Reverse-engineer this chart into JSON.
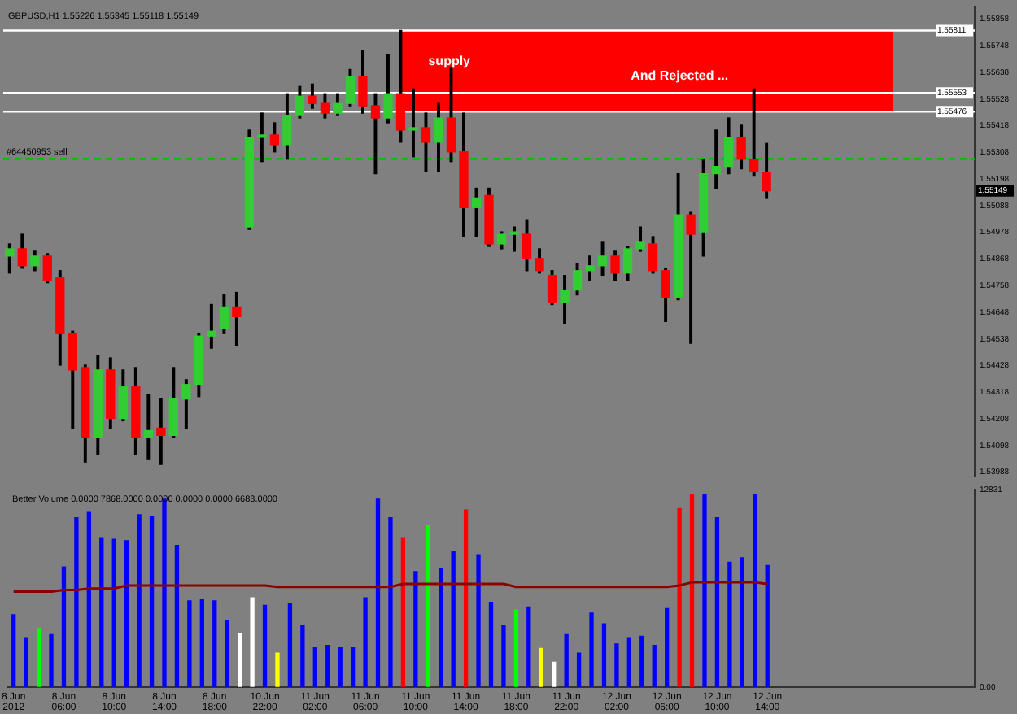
{
  "chart_data": [
    {
      "type": "candlestick",
      "title": "GBPUSD,H1 1.55226 1.55345 1.55118 1.55149",
      "categories": [
        null,
        null,
        null,
        null,
        null,
        null,
        null,
        null,
        null,
        null,
        null,
        null,
        null,
        null,
        null,
        null,
        null,
        null,
        null,
        null,
        null,
        null,
        null,
        null,
        null,
        null,
        null,
        null,
        null,
        null,
        null,
        null,
        null,
        null,
        null,
        null,
        null,
        null,
        null,
        null,
        null,
        null,
        null,
        null,
        null,
        null,
        null,
        null,
        null,
        null,
        null,
        null,
        null,
        null,
        null,
        null,
        null,
        null,
        null,
        null,
        null,
        null,
        null,
        null,
        null,
        null,
        null,
        null,
        null,
        null,
        null,
        null,
        null,
        null,
        null,
        null,
        null
      ],
      "ohlc": [
        [
          1.5488,
          1.5493,
          1.5481,
          1.5491
        ],
        [
          1.5491,
          1.5497,
          1.5483,
          1.5484
        ],
        [
          1.5484,
          1.549,
          1.5482,
          1.5488
        ],
        [
          1.5488,
          1.5489,
          1.5477,
          1.5478
        ],
        [
          1.5479,
          1.5482,
          1.5443,
          1.5456
        ],
        [
          1.5456,
          1.5457,
          1.5417,
          1.5441
        ],
        [
          1.5442,
          1.5443,
          1.5403,
          1.5413
        ],
        [
          1.5413,
          1.5447,
          1.5406,
          1.5441
        ],
        [
          1.5441,
          1.5446,
          1.5417,
          1.5421
        ],
        [
          1.5421,
          1.5441,
          1.542,
          1.5434
        ],
        [
          1.5434,
          1.5442,
          1.5406,
          1.5413
        ],
        [
          1.5413,
          1.5431,
          1.5404,
          1.5416
        ],
        [
          1.5417,
          1.5429,
          1.5402,
          1.5414
        ],
        [
          1.5414,
          1.5442,
          1.5413,
          1.5429
        ],
        [
          1.5429,
          1.5437,
          1.5417,
          1.5435
        ],
        [
          1.5435,
          1.5456,
          1.543,
          1.5455
        ],
        [
          1.5455,
          1.5468,
          1.545,
          1.5457
        ],
        [
          1.5458,
          1.5472,
          1.5456,
          1.5467
        ],
        [
          1.5467,
          1.5473,
          1.5451,
          1.5463
        ],
        [
          1.55,
          1.554,
          1.5499,
          1.5537
        ],
        [
          1.5537,
          1.5547,
          1.5527,
          1.5538
        ],
        [
          1.5538,
          1.5543,
          1.5531,
          1.5534
        ],
        [
          1.5534,
          1.5555,
          1.5528,
          1.5546
        ],
        [
          1.5546,
          1.5558,
          1.5545,
          1.5554
        ],
        [
          1.5554,
          1.5559,
          1.5549,
          1.5551
        ],
        [
          1.5551,
          1.5555,
          1.5545,
          1.5547
        ],
        [
          1.5547,
          1.5555,
          1.5546,
          1.5551
        ],
        [
          1.5551,
          1.5565,
          1.555,
          1.5562
        ],
        [
          1.5562,
          1.5573,
          1.5547,
          1.555
        ],
        [
          1.555,
          1.5555,
          1.5522,
          1.5545
        ],
        [
          1.5545,
          1.5571,
          1.5543,
          1.5555
        ],
        [
          1.5555,
          1.55811,
          1.5535,
          1.554
        ],
        [
          1.554,
          1.5557,
          1.5529,
          1.5541
        ],
        [
          1.5541,
          1.5547,
          1.5523,
          1.5535
        ],
        [
          1.5535,
          1.5551,
          1.5523,
          1.5545
        ],
        [
          1.5545,
          1.5566,
          1.5527,
          1.5531
        ],
        [
          1.5531,
          1.5547,
          1.5496,
          1.5508
        ],
        [
          1.5508,
          1.5516,
          1.5496,
          1.5512
        ],
        [
          1.5513,
          1.5516,
          1.5492,
          1.5493
        ],
        [
          1.5493,
          1.5498,
          1.5491,
          1.5497
        ],
        [
          1.5497,
          1.55,
          1.549,
          1.5498
        ],
        [
          1.5497,
          1.5503,
          1.5482,
          1.5487
        ],
        [
          1.5487,
          1.5491,
          1.5481,
          1.5482
        ],
        [
          1.548,
          1.5482,
          1.5468,
          1.5469
        ],
        [
          1.5469,
          1.548,
          1.546,
          1.5474
        ],
        [
          1.5474,
          1.5485,
          1.5472,
          1.5482
        ],
        [
          1.5482,
          1.5488,
          1.5478,
          1.5484
        ],
        [
          1.5484,
          1.5494,
          1.548,
          1.5488
        ],
        [
          1.5488,
          1.549,
          1.5478,
          1.5481
        ],
        [
          1.5481,
          1.5492,
          1.5478,
          1.5491
        ],
        [
          1.5491,
          1.55,
          1.549,
          1.5494
        ],
        [
          1.5493,
          1.5496,
          1.5481,
          1.5482
        ],
        [
          1.5482,
          1.5483,
          1.5461,
          1.5471
        ],
        [
          1.5471,
          1.5522,
          1.547,
          1.5505
        ],
        [
          1.5505,
          1.5506,
          1.5452,
          1.5497
        ],
        [
          1.5498,
          1.5528,
          1.5488,
          1.5522
        ],
        [
          1.5522,
          1.554,
          1.5516,
          1.5525
        ],
        [
          1.5525,
          1.5545,
          1.5522,
          1.5537
        ],
        [
          1.5537,
          1.5542,
          1.5524,
          1.5528
        ],
        [
          1.5528,
          1.5557,
          1.5521,
          1.5523
        ],
        [
          1.55226,
          1.55345,
          1.55118,
          1.55149
        ],
        null,
        null,
        null,
        null,
        null,
        null,
        null,
        null,
        null,
        null,
        null,
        null,
        null,
        null,
        null,
        null
      ],
      "colors": [
        "#32cd32",
        "#ff0000",
        "#32cd32",
        "#ff0000",
        "#ff0000",
        "#ff0000",
        "#ff0000",
        "#32cd32",
        "#ff0000",
        "#32cd32",
        "#ff0000",
        "#32cd32",
        "#ff0000",
        "#32cd32",
        "#32cd32",
        "#32cd32",
        "#32cd32",
        "#32cd32",
        "#ff0000",
        "#32cd32",
        "#32cd32",
        "#ff0000",
        "#32cd32",
        "#32cd32",
        "#ff0000",
        "#ff0000",
        "#32cd32",
        "#32cd32",
        "#ff0000",
        "#ff0000",
        "#32cd32",
        "#ff0000",
        "#32cd32",
        "#ff0000",
        "#32cd32",
        "#ff0000",
        "#ff0000",
        "#32cd32",
        "#ff0000",
        "#32cd32",
        "#32cd32",
        "#ff0000",
        "#ff0000",
        "#ff0000",
        "#32cd32",
        "#32cd32",
        "#32cd32",
        "#32cd32",
        "#ff0000",
        "#32cd32",
        "#32cd32",
        "#ff0000",
        "#ff0000",
        "#32cd32",
        "#ff0000",
        "#32cd32",
        "#32cd32",
        "#32cd32",
        "#ff0000",
        "#ff0000",
        "#ff0000",
        null,
        null,
        null,
        null,
        null,
        null,
        null,
        null,
        null,
        null,
        null,
        null,
        null,
        null,
        null,
        null
      ],
      "ylim": [
        1.5397,
        1.5591
      ],
      "yticks": [
        1.55858,
        1.55748,
        1.55638,
        1.55528,
        1.55418,
        1.55308,
        1.55198,
        1.55088,
        1.54978,
        1.54868,
        1.54758,
        1.54648,
        1.54538,
        1.54428,
        1.54318,
        1.54208,
        1.54098,
        1.53988
      ],
      "bands": [
        {
          "axis": "y",
          "from": 1.55476,
          "to": 1.55811,
          "label": "supply",
          "color": "#ff0000"
        }
      ],
      "ref_lines": [
        {
          "axis": "y",
          "value": 1.55811,
          "label": "1.55811",
          "color": "#ffffff"
        },
        {
          "axis": "y",
          "value": 1.55553,
          "label": "1.55553",
          "color": "#ffffff"
        },
        {
          "axis": "y",
          "value": 1.55476,
          "label": "1.55476",
          "color": "#ffffff"
        },
        {
          "axis": "y",
          "value": 1.55281,
          "label": "#64450953 sell",
          "color": "#00c000",
          "line_style": "dashed"
        }
      ],
      "annotations": [
        "And Rejected ...",
        {
          "text": "1.55149",
          "y": 1.55149
        }
      ],
      "tick_labels": "y"
    },
    {
      "type": "bar",
      "title": "Better Volume 0.0000 7868.0000 0.0000 0.0000 0.0000 6683.0000",
      "categories": [
        "8 Jun 2012",
        null,
        null,
        null,
        "8 Jun 06:00",
        null,
        null,
        null,
        "8 Jun 10:00",
        null,
        null,
        null,
        "8 Jun 14:00",
        null,
        null,
        null,
        "8 Jun 18:00",
        null,
        null,
        null,
        "10 Jun 22:00",
        null,
        null,
        null,
        "11 Jun 02:00",
        null,
        null,
        null,
        "11 Jun 06:00",
        null,
        null,
        null,
        "11 Jun 10:00",
        null,
        null,
        null,
        "11 Jun 14:00",
        null,
        null,
        null,
        "11 Jun 18:00",
        null,
        null,
        null,
        "11 Jun 22:00",
        null,
        null,
        null,
        "12 Jun 02:00",
        null,
        null,
        null,
        "12 Jun 06:00",
        null,
        null,
        null,
        "12 Jun 10:00",
        null,
        null,
        null,
        "12 Jun 14:00",
        null,
        null,
        null,
        null,
        null,
        null,
        null,
        null,
        null,
        null,
        null,
        null,
        null,
        null,
        null,
        null
      ],
      "series": [
        {
          "type": "bar",
          "values": [
            4700,
            3200,
            3800,
            3400,
            7800,
            11000,
            11400,
            9700,
            9600,
            9500,
            11200,
            11100,
            12200,
            9200,
            5600,
            5700,
            5600,
            4300,
            3500,
            5800,
            5300,
            2200,
            5400,
            4000,
            2600,
            2700,
            2600,
            2600,
            5800,
            12200,
            11000,
            9700,
            7500,
            10500,
            7700,
            8800,
            11500,
            8600,
            5500,
            4000,
            5000,
            5200,
            2500,
            1600,
            3400,
            2200,
            4800,
            4100,
            2800,
            3200,
            3300,
            2700,
            5100,
            11600,
            12500,
            12500,
            11000,
            8100,
            8400,
            12500,
            7900,
            null,
            null,
            null,
            null,
            null,
            null,
            null,
            null,
            null,
            null,
            null,
            null,
            null,
            null,
            null,
            null
          ],
          "colors": [
            "#0000ff",
            "#0000ff",
            "#00ff00",
            "#0000ff",
            "#0000ff",
            "#0000ff",
            "#0000ff",
            "#0000ff",
            "#0000ff",
            "#0000ff",
            "#0000ff",
            "#0000ff",
            "#0000ff",
            "#0000ff",
            "#0000ff",
            "#0000ff",
            "#0000ff",
            "#0000ff",
            "#ffffff",
            "#ffffff",
            "#0000ff",
            "#ffff00",
            "#0000ff",
            "#0000ff",
            "#0000ff",
            "#0000ff",
            "#0000ff",
            "#0000ff",
            "#0000ff",
            "#0000ff",
            "#0000ff",
            "#ff0000",
            "#0000ff",
            "#00ff00",
            "#0000ff",
            "#0000ff",
            "#ff0000",
            "#0000ff",
            "#0000ff",
            "#0000ff",
            "#00ff00",
            "#0000ff",
            "#ffff00",
            "#ffffff",
            "#0000ff",
            "#0000ff",
            "#0000ff",
            "#0000ff",
            "#0000ff",
            "#0000ff",
            "#0000ff",
            "#0000ff",
            "#0000ff",
            "#ff0000",
            "#ff0000",
            "#0000ff",
            "#0000ff",
            "#0000ff",
            "#0000ff",
            "#0000ff",
            "#0000ff",
            null,
            null,
            null,
            null,
            null,
            null,
            null,
            null,
            null,
            null,
            null,
            null,
            null,
            null,
            null,
            null
          ]
        },
        {
          "type": "line",
          "color": "#8b0000",
          "values": [
            6200,
            6200,
            6200,
            6200,
            6300,
            6300,
            6400,
            6400,
            6400,
            6600,
            6600,
            6600,
            6600,
            6600,
            6600,
            6600,
            6600,
            6600,
            6600,
            6600,
            6600,
            6500,
            6500,
            6500,
            6500,
            6500,
            6500,
            6500,
            6500,
            6500,
            6500,
            6700,
            6700,
            6700,
            6700,
            6700,
            6700,
            6700,
            6700,
            6700,
            6500,
            6500,
            6500,
            6500,
            6500,
            6500,
            6500,
            6500,
            6500,
            6500,
            6500,
            6500,
            6500,
            6600,
            6800,
            6800,
            6800,
            6800,
            6800,
            6800,
            6700,
            null,
            null,
            null,
            null,
            null,
            null,
            null,
            null,
            null,
            null,
            null,
            null,
            null,
            null,
            null,
            null
          ]
        }
      ],
      "ylim": [
        0,
        12831
      ],
      "yticks": [
        12831,
        {
          "value": 0,
          "label": "0.00"
        }
      ]
    }
  ]
}
